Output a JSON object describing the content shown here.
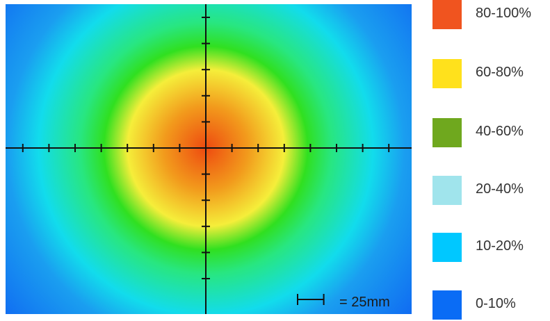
{
  "chart_data": {
    "type": "heatmap",
    "title": "",
    "xlabel": "",
    "ylabel": "",
    "scale_bar": {
      "label": "= 25mm",
      "length_mm": 25
    },
    "axes": {
      "x_tick_count": 15,
      "y_tick_count": 11,
      "tick_spacing_mm": 25
    },
    "radial_profile": [
      {
        "radius_mm": 0,
        "percent": 100
      },
      {
        "radius_mm": 40,
        "percent": 80
      },
      {
        "radius_mm": 75,
        "percent": 60
      },
      {
        "radius_mm": 120,
        "percent": 40
      },
      {
        "radius_mm": 160,
        "percent": 20
      },
      {
        "radius_mm": 190,
        "percent": 10
      },
      {
        "radius_mm": 260,
        "percent": 0
      }
    ],
    "field_colors": [
      {
        "percent": 100,
        "color": "#ee4a10"
      },
      {
        "percent": 80,
        "color": "#f29a1c"
      },
      {
        "percent": 60,
        "color": "#f5ee3a"
      },
      {
        "percent": 50,
        "color": "#30e020"
      },
      {
        "percent": 40,
        "color": "#28e680"
      },
      {
        "percent": 20,
        "color": "#12dcec"
      },
      {
        "percent": 10,
        "color": "#1a9ef0"
      },
      {
        "percent": 0,
        "color": "#0f66f2"
      }
    ],
    "legend": [
      {
        "label": "80-100%",
        "color": "#f0541f"
      },
      {
        "label": "60-80%",
        "color": "#ffe11c"
      },
      {
        "label": "40-60%",
        "color": "#6fa81e"
      },
      {
        "label": "20-40%",
        "color": "#a0e4ec"
      },
      {
        "label": "10-20%",
        "color": "#00c8ff"
      },
      {
        "label": "0-10%",
        "color": "#0a6cf5"
      }
    ]
  }
}
